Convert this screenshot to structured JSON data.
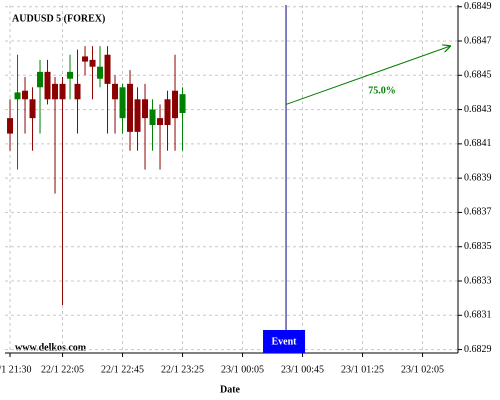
{
  "chart_data": {
    "type": "candlestick",
    "title": "AUDUSD 5 (FOREX)",
    "xlabel": "Date",
    "footer": "www.delkos.com",
    "open": [
      0.68425,
      0.68436,
      0.68441,
      0.68436,
      0.68443,
      0.68452,
      0.68445,
      0.68445,
      0.68448,
      0.68445,
      0.68461,
      0.68459,
      0.68448,
      0.68462,
      0.68445,
      0.68425,
      0.68445,
      0.68436,
      0.68436,
      0.68421,
      0.68425,
      0.68436,
      0.68441,
      0.68428
    ],
    "high": [
      0.68436,
      0.68462,
      0.68449,
      0.68443,
      0.68459,
      0.68459,
      0.68449,
      0.68449,
      0.68462,
      0.68465,
      0.68467,
      0.68467,
      0.68467,
      0.68467,
      0.6845,
      0.68445,
      0.68453,
      0.68443,
      0.68445,
      0.68436,
      0.68433,
      0.68441,
      0.68462,
      0.68443
    ],
    "low": [
      0.68406,
      0.68395,
      0.68416,
      0.68406,
      0.68416,
      0.68433,
      0.68381,
      0.68316,
      0.68436,
      0.68416,
      0.6845,
      0.68436,
      0.68443,
      0.68416,
      0.68416,
      0.68416,
      0.68406,
      0.68406,
      0.68395,
      0.68406,
      0.68395,
      0.68406,
      0.68406,
      0.68406
    ],
    "close": [
      0.68416,
      0.6844,
      0.68436,
      0.68425,
      0.68452,
      0.68436,
      0.68436,
      0.68436,
      0.68452,
      0.68436,
      0.68458,
      0.68455,
      0.68455,
      0.68445,
      0.68436,
      0.68443,
      0.68417,
      0.68417,
      0.68425,
      0.6843,
      0.68421,
      0.68421,
      0.68425,
      0.68439
    ],
    "up_color": "#008000",
    "down_color": "#8b0000",
    "xlim": [
      -0.67,
      59.73
    ],
    "xticks": [
      {
        "value": 0,
        "label": "22/1 21:30"
      },
      {
        "value": 7,
        "label": "22/1 22:05"
      },
      {
        "value": 15,
        "label": "22/1 22:45"
      },
      {
        "value": 23,
        "label": "22/1 23:25"
      },
      {
        "value": 31,
        "label": "23/1 00:05"
      },
      {
        "value": 39,
        "label": "23/1 00:45"
      },
      {
        "value": 47,
        "label": "23/1 01:25"
      },
      {
        "value": 55,
        "label": "23/1 02:05"
      }
    ],
    "ylim": [
      0.68288,
      0.68491
    ],
    "yticks": [
      0.6829,
      0.6831,
      0.6833,
      0.6835,
      0.6837,
      0.6839,
      0.6841,
      0.6843,
      0.6845,
      0.6847,
      0.6849
    ],
    "grid": true,
    "event": {
      "x": 36.8,
      "label": "Event",
      "line_color": "#000080",
      "box_color": "#0000ff"
    },
    "arrow": {
      "x": [
        36.8,
        58.67
      ],
      "y": [
        0.68433,
        0.68467
      ],
      "label": "75.0%",
      "color": "#008000"
    }
  }
}
